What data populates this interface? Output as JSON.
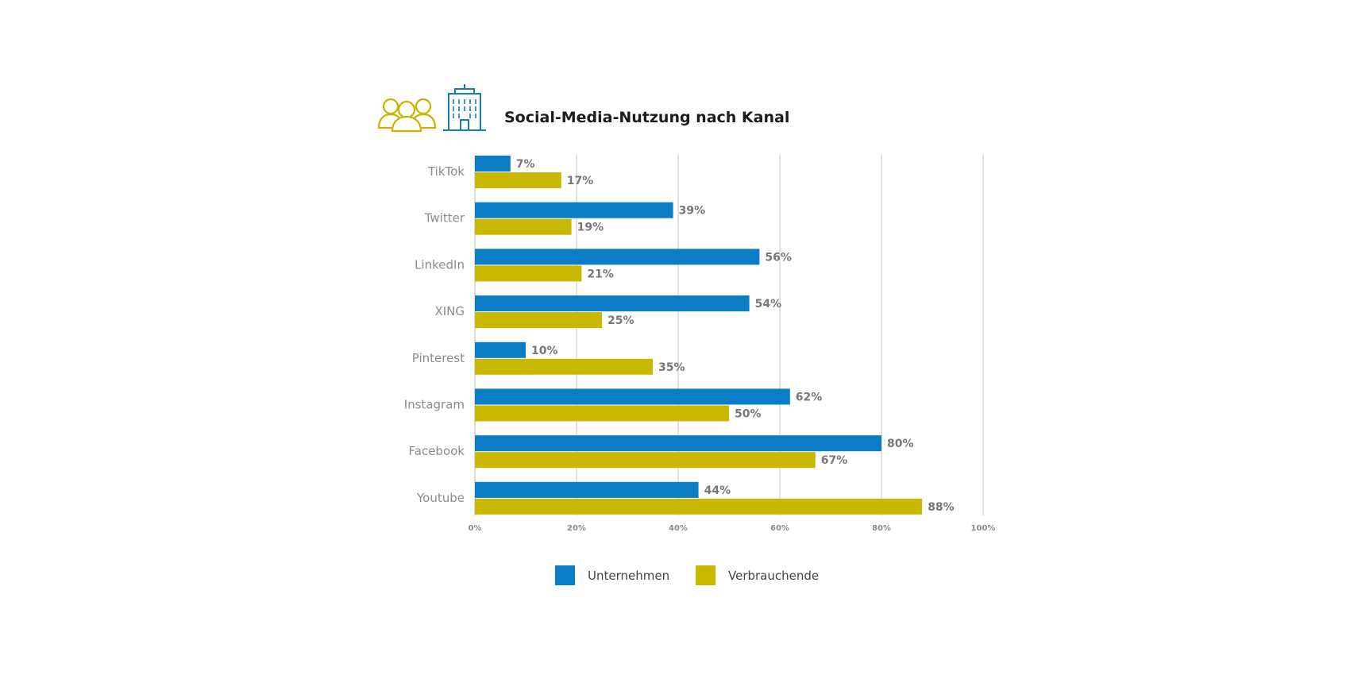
{
  "header": {
    "title": "Social-Media-Nutzung nach Kanal",
    "icons": [
      "people-icon",
      "office-building-icon"
    ]
  },
  "colors": {
    "unternehmen": "#0b7dc6",
    "verbrauchende": "#c8b900",
    "people_icon": "#c8b400",
    "building_icon": "#1a7ab8"
  },
  "chart_data": {
    "type": "bar",
    "orientation": "horizontal",
    "categories": [
      "TikTok",
      "Twitter",
      "LinkedIn",
      "XING",
      "Pinterest",
      "Instagram",
      "Facebook",
      "Youtube"
    ],
    "series": [
      {
        "name": "Unternehmen",
        "values": [
          7,
          39,
          56,
          54,
          10,
          62,
          80,
          44
        ],
        "labels": [
          "7%",
          "39%",
          "56%",
          "54%",
          "10%",
          "62%",
          "80%",
          "44%"
        ]
      },
      {
        "name": "Verbrauchende",
        "values": [
          17,
          19,
          21,
          25,
          35,
          50,
          67,
          88
        ],
        "labels": [
          "17%",
          "19%",
          "21%",
          "25%",
          "35%",
          "50%",
          "67%",
          "88%"
        ]
      }
    ],
    "xlim": [
      0,
      100
    ],
    "x_ticks": [
      0,
      20,
      40,
      60,
      80,
      100
    ],
    "x_tick_labels": [
      "0%",
      "20%",
      "40%",
      "60%",
      "80%",
      "100%"
    ],
    "grid": "vertical",
    "legend_position": "bottom",
    "title": "Social-Media-Nutzung nach Kanal",
    "xlabel": "",
    "ylabel": ""
  }
}
